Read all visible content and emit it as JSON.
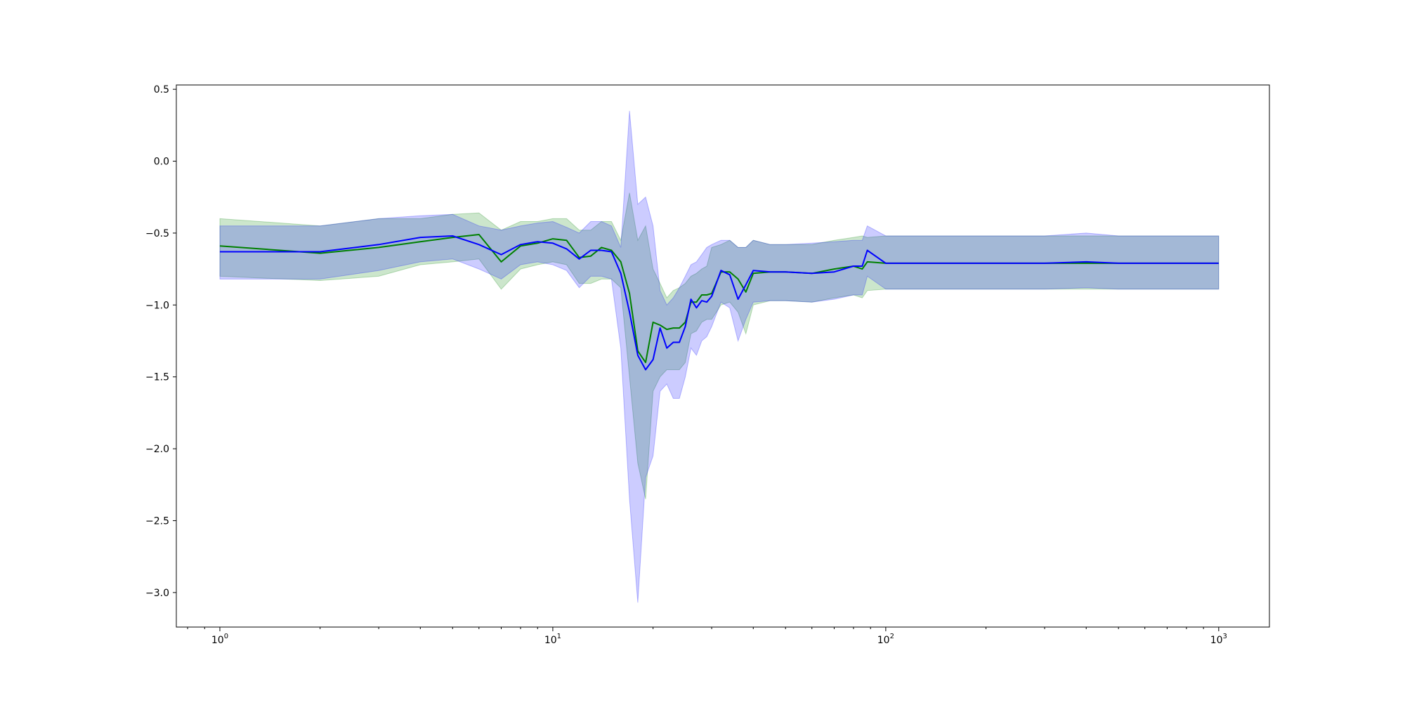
{
  "chart_data": {
    "type": "line",
    "title": "",
    "xlabel": "",
    "ylabel": "",
    "x_scale": "log",
    "xlim": [
      0.74,
      1420
    ],
    "ylim": [
      -3.24,
      0.53
    ],
    "grid": false,
    "legend": "none",
    "x_ticks": [
      {
        "value": 1,
        "base": "10",
        "exp": "0"
      },
      {
        "value": 10,
        "base": "10",
        "exp": "1"
      },
      {
        "value": 100,
        "base": "10",
        "exp": "2"
      },
      {
        "value": 1000,
        "base": "10",
        "exp": "3"
      }
    ],
    "y_ticks": [
      {
        "value": 0.5,
        "label": "0.5"
      },
      {
        "value": 0.0,
        "label": "0.0"
      },
      {
        "value": -0.5,
        "label": "−0.5"
      },
      {
        "value": -1.0,
        "label": "−1.0"
      },
      {
        "value": -1.5,
        "label": "−1.5"
      },
      {
        "value": -2.0,
        "label": "−2.0"
      },
      {
        "value": -2.5,
        "label": "−2.5"
      },
      {
        "value": -3.0,
        "label": "−3.0"
      }
    ],
    "series": [
      {
        "color": "#008000",
        "band_color": "#008000",
        "x": [
          1,
          2,
          3,
          4,
          5,
          6,
          7,
          8,
          9,
          10,
          11,
          12,
          13,
          14,
          15,
          16,
          17,
          18,
          19,
          20,
          21,
          22,
          23,
          24,
          25,
          26,
          27,
          28,
          29,
          30,
          32,
          34,
          36,
          38,
          40,
          45,
          50,
          60,
          70,
          80,
          85,
          88,
          100,
          200,
          300,
          400,
          500,
          1000
        ],
        "y": [
          -0.59,
          -0.64,
          -0.6,
          -0.56,
          -0.53,
          -0.51,
          -0.7,
          -0.59,
          -0.57,
          -0.54,
          -0.55,
          -0.67,
          -0.66,
          -0.6,
          -0.62,
          -0.7,
          -0.92,
          -1.32,
          -1.4,
          -1.12,
          -1.14,
          -1.17,
          -1.16,
          -1.16,
          -1.12,
          -0.98,
          -0.98,
          -0.93,
          -0.93,
          -0.92,
          -0.77,
          -0.77,
          -0.82,
          -0.91,
          -0.78,
          -0.77,
          -0.77,
          -0.78,
          -0.75,
          -0.73,
          -0.75,
          -0.7,
          -0.71,
          -0.71,
          -0.71,
          -0.71,
          -0.71,
          -0.71
        ],
        "upper": [
          -0.4,
          -0.45,
          -0.4,
          -0.4,
          -0.37,
          -0.36,
          -0.48,
          -0.42,
          -0.42,
          -0.4,
          -0.4,
          -0.48,
          -0.48,
          -0.42,
          -0.42,
          -0.55,
          -0.22,
          -0.55,
          -0.45,
          -0.75,
          -0.85,
          -0.95,
          -0.9,
          -0.88,
          -0.85,
          -0.8,
          -0.78,
          -0.75,
          -0.73,
          -0.6,
          -0.58,
          -0.55,
          -0.6,
          -0.6,
          -0.55,
          -0.58,
          -0.58,
          -0.58,
          -0.55,
          -0.53,
          -0.52,
          -0.53,
          -0.52,
          -0.52,
          -0.52,
          -0.52,
          -0.52,
          -0.52
        ],
        "lower": [
          -0.8,
          -0.83,
          -0.8,
          -0.72,
          -0.7,
          -0.68,
          -0.89,
          -0.75,
          -0.72,
          -0.7,
          -0.72,
          -0.85,
          -0.85,
          -0.82,
          -0.82,
          -0.88,
          -1.5,
          -2.1,
          -2.35,
          -1.6,
          -1.5,
          -1.45,
          -1.45,
          -1.45,
          -1.4,
          -1.2,
          -1.18,
          -1.12,
          -1.1,
          -1.1,
          -1.0,
          -0.98,
          -1.05,
          -1.2,
          -1.0,
          -0.97,
          -0.97,
          -0.98,
          -0.95,
          -0.93,
          -0.95,
          -0.9,
          -0.89,
          -0.89,
          -0.89,
          -0.89,
          -0.89,
          -0.89
        ]
      },
      {
        "color": "#0000ff",
        "band_color": "#0000ff",
        "x": [
          1,
          2,
          3,
          4,
          5,
          6,
          7,
          8,
          9,
          10,
          11,
          12,
          13,
          14,
          15,
          16,
          17,
          18,
          19,
          20,
          21,
          22,
          23,
          24,
          25,
          26,
          27,
          28,
          29,
          30,
          32,
          34,
          36,
          38,
          40,
          45,
          50,
          60,
          70,
          80,
          85,
          88,
          100,
          200,
          300,
          400,
          500,
          1000
        ],
        "y": [
          -0.63,
          -0.63,
          -0.58,
          -0.53,
          -0.52,
          -0.58,
          -0.65,
          -0.58,
          -0.56,
          -0.57,
          -0.61,
          -0.68,
          -0.62,
          -0.62,
          -0.63,
          -0.78,
          -1.05,
          -1.35,
          -1.45,
          -1.38,
          -1.16,
          -1.3,
          -1.26,
          -1.26,
          -1.15,
          -0.96,
          -1.02,
          -0.97,
          -0.98,
          -0.94,
          -0.76,
          -0.79,
          -0.96,
          -0.86,
          -0.76,
          -0.77,
          -0.77,
          -0.78,
          -0.77,
          -0.73,
          -0.73,
          -0.62,
          -0.71,
          -0.71,
          -0.71,
          -0.7,
          -0.71,
          -0.71
        ],
        "upper": [
          -0.45,
          -0.45,
          -0.4,
          -0.38,
          -0.37,
          -0.45,
          -0.48,
          -0.45,
          -0.43,
          -0.42,
          -0.46,
          -0.5,
          -0.42,
          -0.42,
          -0.45,
          -0.6,
          0.35,
          -0.3,
          -0.25,
          -0.45,
          -0.9,
          -1.0,
          -0.95,
          -0.88,
          -0.8,
          -0.72,
          -0.7,
          -0.65,
          -0.6,
          -0.58,
          -0.55,
          -0.55,
          -0.6,
          -0.6,
          -0.55,
          -0.58,
          -0.58,
          -0.57,
          -0.56,
          -0.55,
          -0.55,
          -0.45,
          -0.52,
          -0.52,
          -0.52,
          -0.5,
          -0.52,
          -0.52
        ],
        "lower": [
          -0.82,
          -0.82,
          -0.76,
          -0.7,
          -0.68,
          -0.75,
          -0.82,
          -0.72,
          -0.7,
          -0.72,
          -0.76,
          -0.88,
          -0.8,
          -0.8,
          -0.82,
          -1.3,
          -2.35,
          -3.07,
          -2.2,
          -2.05,
          -1.6,
          -1.55,
          -1.65,
          -1.65,
          -1.5,
          -1.3,
          -1.35,
          -1.25,
          -1.22,
          -1.15,
          -0.98,
          -1.02,
          -1.25,
          -1.1,
          -0.98,
          -0.97,
          -0.97,
          -0.98,
          -0.96,
          -0.93,
          -0.93,
          -0.8,
          -0.89,
          -0.89,
          -0.89,
          -0.88,
          -0.89,
          -0.89
        ]
      }
    ]
  }
}
